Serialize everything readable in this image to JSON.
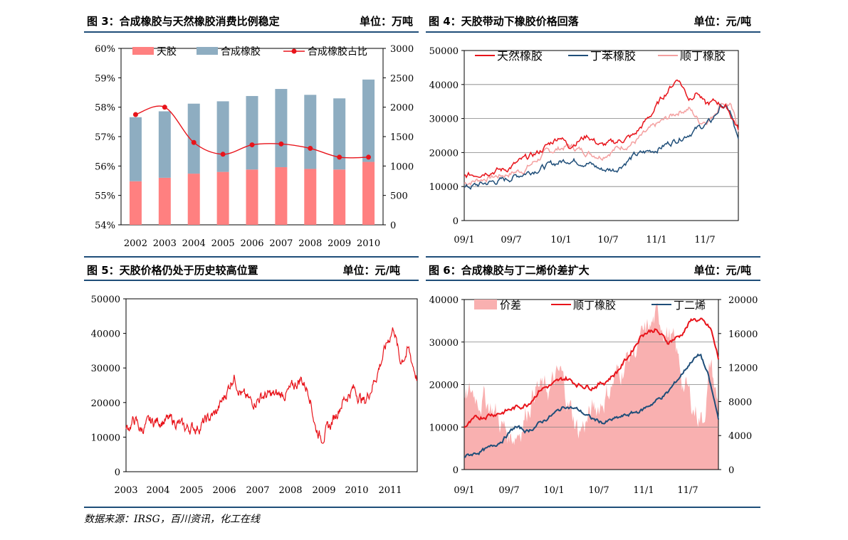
{
  "headers": {
    "fig3": {
      "title": "图 3：合成橡胶与天然橡胶消费比例稳定",
      "unit": "单位：万吨"
    },
    "fig4": {
      "title": "图 4：天胶带动下橡胶价格回落",
      "unit": "单位：元/吨"
    },
    "fig5": {
      "title": "图 5：天胶价格仍处于历史较高位置",
      "unit": "单位：元/吨"
    },
    "fig6": {
      "title": "图 6：合成橡胶与丁二烯价差扩大",
      "unit": "单位：元/吨"
    }
  },
  "source": "数据来源：IRSG，百川资讯，化工在线",
  "colors": {
    "red": "#e8141b",
    "navy": "#1f4e79",
    "pink": "#ff8080",
    "lightpink": "#f4a0a0",
    "steel": "#8eadc1",
    "pinkfill": "#f9b0b0",
    "ruleblue": "#1f4e79"
  },
  "chart_data": [
    {
      "id": "fig3",
      "type": "bar",
      "categories": [
        "2002",
        "2003",
        "2004",
        "2005",
        "2006",
        "2007",
        "2008",
        "2009",
        "2010"
      ],
      "series": [
        {
          "name": "天胶",
          "values": [
            740,
            800,
            870,
            900,
            940,
            980,
            950,
            940,
            1070
          ]
        },
        {
          "name": "合成橡胶",
          "values": [
            1830,
            1930,
            2060,
            2100,
            2190,
            2310,
            2210,
            2150,
            2470
          ]
        },
        {
          "name": "合成橡胶占比",
          "values": [
            57.75,
            58.0,
            56.8,
            56.4,
            56.72,
            56.75,
            56.6,
            56.3,
            56.3
          ]
        }
      ],
      "ylim_left": [
        54,
        60
      ],
      "yticks_left": [
        "54%",
        "55%",
        "56%",
        "57%",
        "58%",
        "59%",
        "60%"
      ],
      "ylim_right": [
        0,
        3000
      ],
      "yticks_right": [
        "0",
        "500",
        "1000",
        "1500",
        "2000",
        "2500",
        "3000"
      ],
      "legend": "top"
    },
    {
      "id": "fig4",
      "type": "line",
      "x": [
        "09/1",
        "09/7",
        "10/1",
        "10/7",
        "11/1",
        "11/7"
      ],
      "ylim": [
        0,
        50000
      ],
      "yticks": [
        "0",
        "10000",
        "20000",
        "30000",
        "40000",
        "50000"
      ],
      "series": [
        {
          "name": "天然橡胶",
          "keypoints": [
            [
              0,
              13000
            ],
            [
              0.08,
              14500
            ],
            [
              0.15,
              15000
            ],
            [
              0.22,
              18000
            ],
            [
              0.27,
              20000
            ],
            [
              0.35,
              25000
            ],
            [
              0.38,
              22000
            ],
            [
              0.45,
              25000
            ],
            [
              0.5,
              22000
            ],
            [
              0.55,
              23000
            ],
            [
              0.62,
              25000
            ],
            [
              0.68,
              31000
            ],
            [
              0.73,
              37000
            ],
            [
              0.78,
              42000
            ],
            [
              0.82,
              36000
            ],
            [
              0.85,
              38000
            ],
            [
              0.88,
              34000
            ],
            [
              0.92,
              35000
            ],
            [
              0.96,
              33000
            ],
            [
              1,
              27000
            ]
          ]
        },
        {
          "name": "丁苯橡胶",
          "keypoints": [
            [
              0,
              9500
            ],
            [
              0.08,
              11000
            ],
            [
              0.15,
              12000
            ],
            [
              0.22,
              14000
            ],
            [
              0.3,
              16000
            ],
            [
              0.38,
              18000
            ],
            [
              0.45,
              17000
            ],
            [
              0.5,
              15000
            ],
            [
              0.55,
              15000
            ],
            [
              0.62,
              19000
            ],
            [
              0.7,
              21000
            ],
            [
              0.78,
              24000
            ],
            [
              0.85,
              27000
            ],
            [
              0.9,
              29000
            ],
            [
              0.94,
              34000
            ],
            [
              0.97,
              32000
            ],
            [
              1,
              23000
            ]
          ]
        },
        {
          "name": "顺丁橡胶",
          "keypoints": [
            [
              0,
              11000
            ],
            [
              0.08,
              12500
            ],
            [
              0.15,
              13500
            ],
            [
              0.22,
              15000
            ],
            [
              0.3,
              20000
            ],
            [
              0.38,
              22000
            ],
            [
              0.45,
              20000
            ],
            [
              0.5,
              19000
            ],
            [
              0.55,
              21000
            ],
            [
              0.62,
              23000
            ],
            [
              0.7,
              28000
            ],
            [
              0.78,
              32000
            ],
            [
              0.82,
              33000
            ],
            [
              0.86,
              29000
            ],
            [
              0.9,
              30000
            ],
            [
              0.94,
              35000
            ],
            [
              0.97,
              34000
            ],
            [
              1,
              27000
            ]
          ]
        }
      ],
      "legend": "top"
    },
    {
      "id": "fig5",
      "type": "line",
      "x": [
        "2003",
        "2004",
        "2005",
        "2006",
        "2007",
        "2008",
        "2009",
        "2010",
        "2011"
      ],
      "ylim": [
        0,
        50000
      ],
      "yticks": [
        "0",
        "10000",
        "20000",
        "30000",
        "40000",
        "50000"
      ],
      "series": [
        {
          "keypoints": [
            [
              0,
              12000
            ],
            [
              0.03,
              15000
            ],
            [
              0.05,
              12000
            ],
            [
              0.08,
              14000
            ],
            [
              0.12,
              15000
            ],
            [
              0.17,
              14500
            ],
            [
              0.2,
              12500
            ],
            [
              0.25,
              13000
            ],
            [
              0.28,
              15000
            ],
            [
              0.31,
              17000
            ],
            [
              0.34,
              22000
            ],
            [
              0.37,
              28000
            ],
            [
              0.4,
              22000
            ],
            [
              0.43,
              20000
            ],
            [
              0.47,
              22000
            ],
            [
              0.52,
              22000
            ],
            [
              0.56,
              23000
            ],
            [
              0.6,
              27000
            ],
            [
              0.63,
              23000
            ],
            [
              0.65,
              13000
            ],
            [
              0.67,
              10000
            ],
            [
              0.7,
              13000
            ],
            [
              0.74,
              20000
            ],
            [
              0.78,
              24000
            ],
            [
              0.82,
              20000
            ],
            [
              0.86,
              28000
            ],
            [
              0.9,
              38000
            ],
            [
              0.92,
              42000
            ],
            [
              0.94,
              32000
            ],
            [
              0.97,
              35000
            ],
            [
              1,
              27000
            ]
          ]
        }
      ]
    },
    {
      "id": "fig6",
      "type": "line",
      "x": [
        "09/1",
        "09/7",
        "10/1",
        "10/7",
        "11/1",
        "11/7"
      ],
      "ylim_left": [
        0,
        40000
      ],
      "yticks_left": [
        "0",
        "10000",
        "20000",
        "30000",
        "40000"
      ],
      "ylim_right": [
        0,
        20000
      ],
      "yticks_right": [
        "0",
        "4000",
        "8000",
        "12000",
        "16000",
        "20000"
      ],
      "series": [
        {
          "name": "价差",
          "axis": "left",
          "keypoints": [
            [
              0,
              15000
            ],
            [
              0.03,
              18000
            ],
            [
              0.08,
              17000
            ],
            [
              0.12,
              14000
            ],
            [
              0.15,
              10000
            ],
            [
              0.18,
              8000
            ],
            [
              0.22,
              10000
            ],
            [
              0.28,
              20000
            ],
            [
              0.32,
              18000
            ],
            [
              0.38,
              22000
            ],
            [
              0.42,
              14000
            ],
            [
              0.45,
              9000
            ],
            [
              0.5,
              13000
            ],
            [
              0.55,
              17000
            ],
            [
              0.6,
              22000
            ],
            [
              0.65,
              27000
            ],
            [
              0.7,
              30000
            ],
            [
              0.75,
              35000
            ],
            [
              0.78,
              35000
            ],
            [
              0.82,
              30000
            ],
            [
              0.86,
              21000
            ],
            [
              0.9,
              15000
            ],
            [
              0.94,
              12000
            ],
            [
              0.97,
              25000
            ],
            [
              1,
              14000
            ]
          ]
        },
        {
          "name": "顺丁橡胶",
          "axis": "left",
          "keypoints": [
            [
              0,
              10000
            ],
            [
              0.05,
              12000
            ],
            [
              0.1,
              13000
            ],
            [
              0.15,
              13500
            ],
            [
              0.2,
              14500
            ],
            [
              0.25,
              15500
            ],
            [
              0.3,
              19000
            ],
            [
              0.35,
              20000
            ],
            [
              0.4,
              21500
            ],
            [
              0.45,
              20000
            ],
            [
              0.5,
              19500
            ],
            [
              0.55,
              20500
            ],
            [
              0.6,
              23000
            ],
            [
              0.65,
              27000
            ],
            [
              0.7,
              32000
            ],
            [
              0.75,
              33000
            ],
            [
              0.8,
              30000
            ],
            [
              0.85,
              31500
            ],
            [
              0.9,
              35500
            ],
            [
              0.93,
              35000
            ],
            [
              0.97,
              33000
            ],
            [
              1,
              26000
            ]
          ]
        },
        {
          "name": "丁二烯",
          "axis": "right",
          "keypoints": [
            [
              0,
              1500
            ],
            [
              0.05,
              2000
            ],
            [
              0.1,
              2500
            ],
            [
              0.15,
              3500
            ],
            [
              0.2,
              5000
            ],
            [
              0.25,
              4500
            ],
            [
              0.3,
              5500
            ],
            [
              0.35,
              6500
            ],
            [
              0.4,
              7500
            ],
            [
              0.45,
              7000
            ],
            [
              0.5,
              6000
            ],
            [
              0.55,
              5500
            ],
            [
              0.6,
              6000
            ],
            [
              0.65,
              6500
            ],
            [
              0.7,
              7000
            ],
            [
              0.75,
              8000
            ],
            [
              0.8,
              9000
            ],
            [
              0.85,
              11000
            ],
            [
              0.9,
              13000
            ],
            [
              0.93,
              13500
            ],
            [
              0.96,
              11000
            ],
            [
              1,
              6000
            ]
          ]
        }
      ],
      "legend": "top"
    }
  ]
}
